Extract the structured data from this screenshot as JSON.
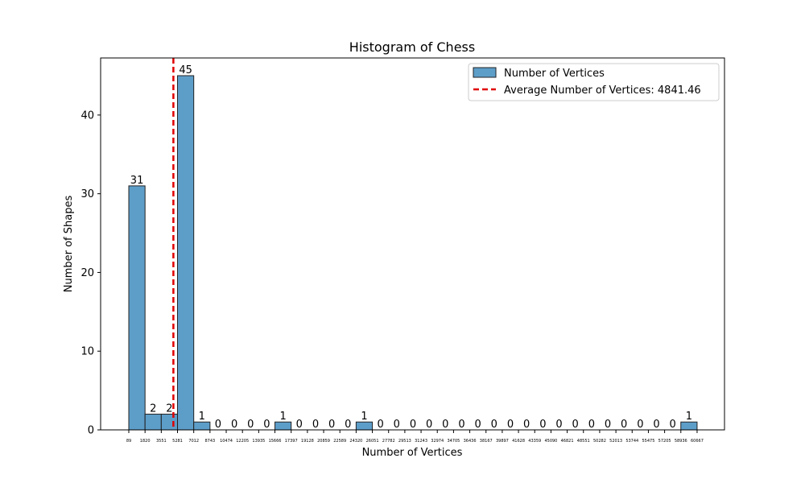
{
  "chart_data": {
    "type": "bar",
    "title": "Histogram of Chess",
    "xlabel": "Number of Vertices",
    "ylabel": "Number of Shapes",
    "ylim": [
      0,
      47.25
    ],
    "yticks": [
      0,
      10,
      20,
      30,
      40
    ],
    "bin_edges": [
      "89",
      "1820",
      "3551",
      "5281",
      "7012",
      "8743",
      "10474",
      "12205",
      "13935",
      "15666",
      "17397",
      "19128",
      "20859",
      "22589",
      "24320",
      "26051",
      "27782",
      "29513",
      "31243",
      "32974",
      "34705",
      "36436",
      "38167",
      "39897",
      "41628",
      "43359",
      "45090",
      "46821",
      "48551",
      "50282",
      "52013",
      "53744",
      "55475",
      "57205",
      "58936",
      "60667"
    ],
    "series": [
      {
        "name": "Number of Vertices",
        "values": [
          31,
          2,
          2,
          45,
          1,
          0,
          0,
          0,
          0,
          1,
          0,
          0,
          0,
          0,
          1,
          0,
          0,
          0,
          0,
          0,
          0,
          0,
          0,
          0,
          0,
          0,
          0,
          0,
          0,
          0,
          0,
          0,
          0,
          0,
          1
        ],
        "color": "#5d9ec9",
        "edge_color": "#222222"
      }
    ],
    "average_line": {
      "label": "Average Number of Vertices: 4841.46",
      "value": 4841.46,
      "color": "#e00000"
    },
    "legend": {
      "placement": "top-right",
      "entries": [
        "Number of Vertices",
        "Average Number of Vertices: 4841.46"
      ]
    },
    "grid": false
  }
}
